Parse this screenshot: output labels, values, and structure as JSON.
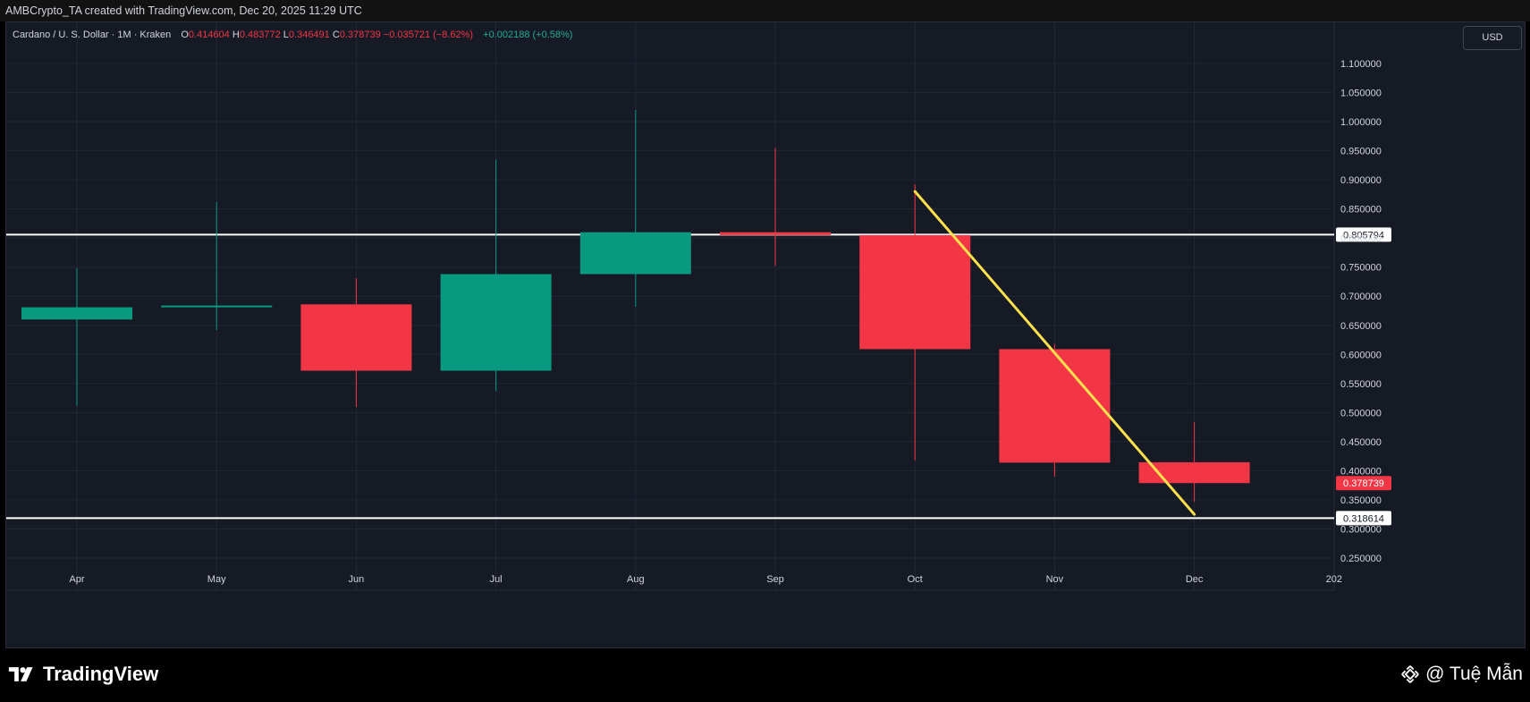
{
  "header": {
    "credit": "AMBCrypto_TA created with TradingView.com, Dec 20, 2025 11:29 UTC"
  },
  "legend": {
    "symbol": "Cardano / U. S. Dollar · 1M · Kraken",
    "o_label": "O",
    "o_value": "0.414604",
    "h_label": "H",
    "h_value": "0.483772",
    "l_label": "L",
    "l_value": "0.346491",
    "c_label": "C",
    "c_value": "0.378739",
    "change": "−0.035721 (−8.62%)",
    "extra": "+0.002188 (+0.58%)"
  },
  "currency_button": "USD",
  "footer": {
    "brand": "TradingView",
    "author": "@ Tuệ Mẫn"
  },
  "colors": {
    "up": "#089981",
    "down": "#f23645",
    "trendline": "#ffe14d",
    "level_line": "#ffffff",
    "grid": "#232734"
  },
  "chart_data": {
    "type": "candlestick",
    "title": "Cardano / U. S. Dollar · 1M · Kraken",
    "ylim": [
      0.23,
      1.125
    ],
    "y_ticks": [
      0.25,
      0.3,
      0.35,
      0.4,
      0.45,
      0.5,
      0.55,
      0.6,
      0.65,
      0.7,
      0.75,
      0.8,
      0.85,
      0.9,
      0.95,
      1.0,
      1.05,
      1.1
    ],
    "y_tick_labels": [
      "0.250000",
      "0.300000",
      "0.350000",
      "0.400000",
      "0.450000",
      "0.500000",
      "0.550000",
      "0.600000",
      "0.650000",
      "0.700000",
      "0.750000",
      "0.800000",
      "0.850000",
      "0.900000",
      "0.950000",
      "1.000000",
      "1.050000",
      "1.100000"
    ],
    "x_labels": [
      "Apr",
      "May",
      "Jun",
      "Jul",
      "Aug",
      "Sep",
      "Oct",
      "Nov",
      "Dec",
      "202"
    ],
    "candles": [
      {
        "month": "Apr",
        "open": 0.66,
        "high": 0.748,
        "low": 0.512,
        "close": 0.681
      },
      {
        "month": "May",
        "open": 0.681,
        "high": 0.862,
        "low": 0.642,
        "close": 0.684
      },
      {
        "month": "Jun",
        "open": 0.686,
        "high": 0.731,
        "low": 0.51,
        "close": 0.572
      },
      {
        "month": "Jul",
        "open": 0.572,
        "high": 0.935,
        "low": 0.537,
        "close": 0.738
      },
      {
        "month": "Aug",
        "open": 0.738,
        "high": 1.02,
        "low": 0.682,
        "close": 0.81
      },
      {
        "month": "Sep",
        "open": 0.81,
        "high": 0.955,
        "low": 0.752,
        "close": 0.805
      },
      {
        "month": "Oct",
        "open": 0.805,
        "high": 0.892,
        "low": 0.418,
        "close": 0.609
      },
      {
        "month": "Nov",
        "open": 0.609,
        "high": 0.618,
        "low": 0.39,
        "close": 0.414
      },
      {
        "month": "Dec",
        "open": 0.414604,
        "high": 0.483772,
        "low": 0.346491,
        "close": 0.378739
      }
    ],
    "horizontal_levels": [
      {
        "value": 0.805794,
        "label": "0.805794"
      },
      {
        "value": 0.318614,
        "label": "0.318614"
      }
    ],
    "last_price": {
      "value": 0.378739,
      "label": "0.378739"
    },
    "trendline": {
      "from": {
        "month": "Oct",
        "value": 0.88
      },
      "to": {
        "month": "Dec",
        "value": 0.325
      }
    },
    "grid": true
  }
}
